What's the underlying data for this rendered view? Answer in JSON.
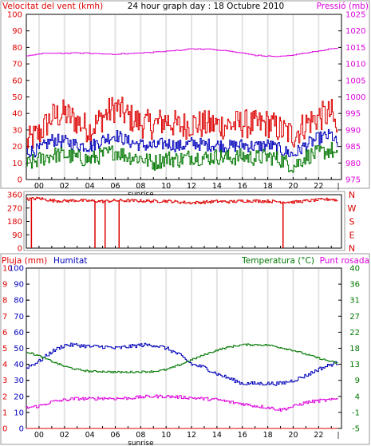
{
  "colors": {
    "background": "#ffffff",
    "plot_border": "#000000",
    "grid_vertical": "#e3e3e3",
    "red": "#dd0000",
    "blue": "#0000bb",
    "green": "#007700",
    "magenta": "#dd00dd",
    "frame": "#666666"
  },
  "chart_data": [
    {
      "type": "line",
      "header": {
        "left": "Velocitat del vent (kmh)",
        "center": "24 hour graph day : 18 Octubre 2010",
        "right": "Pressió (mb)"
      },
      "y_left": {
        "ylim": [
          0,
          100
        ],
        "ticks": [
          "100",
          "90",
          "80",
          "70",
          "60",
          "50",
          "40",
          "30",
          "20",
          "10",
          "0"
        ]
      },
      "y_right": {
        "ylim": [
          975,
          1025
        ],
        "ticks": [
          "1025",
          "1020",
          "1015",
          "1010",
          "1005",
          "1000",
          "995",
          "990",
          "985",
          "980",
          "975"
        ]
      },
      "x": {
        "xlim": [
          -1,
          23.8
        ],
        "tick_hours": [
          0,
          2,
          4,
          6,
          8,
          10,
          12,
          14,
          16,
          18,
          20,
          22
        ],
        "tick_labels": [
          "00",
          "02",
          "04",
          "06",
          "08",
          "10",
          "12",
          "14",
          "16",
          "18",
          "20",
          "22"
        ],
        "sunrise_hour": 8,
        "sunrise_label": "sunrise"
      },
      "series": [
        {
          "name": "",
          "axis": "left",
          "color": "red",
          "hours": [
            -1,
            0,
            1,
            2,
            3,
            4,
            5,
            6,
            7,
            8,
            9,
            10,
            11,
            12,
            13,
            14,
            15,
            16,
            17,
            18,
            19,
            20,
            21,
            22,
            23,
            23.5
          ],
          "values": [
            22,
            28,
            38,
            40,
            35,
            30,
            38,
            44,
            38,
            34,
            33,
            36,
            32,
            34,
            33,
            33,
            33,
            34,
            33,
            34,
            30,
            27,
            34,
            38,
            40,
            26
          ]
        },
        {
          "name": "",
          "axis": "left",
          "color": "blue",
          "hours": [
            -1,
            0,
            1,
            2,
            3,
            4,
            5,
            6,
            7,
            8,
            9,
            10,
            11,
            12,
            13,
            14,
            15,
            16,
            17,
            18,
            19,
            20,
            21,
            22,
            23,
            23.5
          ],
          "values": [
            17,
            18,
            24,
            23,
            21,
            20,
            24,
            27,
            23,
            21,
            20,
            22,
            20,
            22,
            21,
            21,
            20,
            21,
            20,
            21,
            18,
            15,
            21,
            25,
            27,
            20
          ]
        },
        {
          "name": "",
          "axis": "left",
          "color": "green",
          "hours": [
            -1,
            0,
            1,
            2,
            3,
            4,
            5,
            6,
            7,
            8,
            9,
            10,
            11,
            12,
            13,
            14,
            15,
            16,
            17,
            18,
            19,
            20,
            21,
            22,
            23,
            23.5
          ],
          "values": [
            9,
            12,
            15,
            15,
            13,
            12,
            15,
            17,
            14,
            13,
            10,
            13,
            12,
            14,
            13,
            14,
            13,
            14,
            13,
            14,
            12,
            8,
            14,
            16,
            18,
            12
          ]
        },
        {
          "name": "",
          "axis": "right",
          "color": "magenta",
          "hours": [
            -1,
            0,
            1,
            2,
            3,
            4,
            5,
            6,
            7,
            8,
            9,
            10,
            11,
            12,
            13,
            14,
            15,
            16,
            17,
            18,
            19,
            20,
            21,
            22,
            23,
            23.5
          ],
          "values": [
            1012.5,
            1013,
            1013.3,
            1013.2,
            1013.3,
            1013.2,
            1013,
            1013,
            1013.1,
            1013.3,
            1013.6,
            1013.8,
            1014.2,
            1014.6,
            1014.5,
            1014.2,
            1013.8,
            1013.2,
            1012.6,
            1012.3,
            1012.3,
            1012.7,
            1013.3,
            1014,
            1014.6,
            1015
          ]
        }
      ]
    },
    {
      "type": "line",
      "y_left": {
        "ylim": [
          0,
          360
        ],
        "ticks": [
          "360",
          "270",
          "180",
          "90",
          "0"
        ]
      },
      "y_right_labels": [
        "N",
        "W",
        "S",
        "E",
        "N"
      ],
      "x": {
        "xlim": [
          -1,
          23.8
        ]
      },
      "series": [
        {
          "name": "",
          "axis": "left",
          "color": "red",
          "hours": [
            -1,
            0,
            1,
            2,
            3,
            4,
            5,
            6,
            7,
            8,
            9,
            10,
            11,
            12,
            13,
            14,
            15,
            16,
            17,
            18,
            19,
            20,
            21,
            22,
            23,
            23.5
          ],
          "values": [
            330,
            335,
            320,
            318,
            322,
            318,
            315,
            320,
            320,
            318,
            316,
            318,
            310,
            305,
            310,
            315,
            312,
            318,
            318,
            316,
            312,
            310,
            318,
            325,
            330,
            320
          ]
        }
      ],
      "spikes": [
        {
          "hour": -0.6,
          "value": 0
        },
        {
          "hour": 4.4,
          "value": 0
        },
        {
          "hour": 5.2,
          "value": 0
        },
        {
          "hour": 6.3,
          "value": 0
        },
        {
          "hour": 19.2,
          "value": 0
        }
      ]
    },
    {
      "type": "line",
      "header": {
        "left1": "Pluja (mm)",
        "left2": "Humitat",
        "right1": "Temperatura (°C)",
        "right2": "Punt rosada"
      },
      "y_far_left": {
        "ylim": [
          0,
          10
        ],
        "ticks": [
          "10",
          "9",
          "8",
          "7",
          "6",
          "5",
          "4",
          "3",
          "2",
          "1",
          "0"
        ]
      },
      "y_left": {
        "ylim": [
          0,
          100
        ],
        "ticks": [
          "100",
          "90",
          "80",
          "70",
          "60",
          "50",
          "40",
          "30",
          "20",
          "10",
          "0"
        ]
      },
      "y_right": {
        "ylim": [
          -5,
          40
        ],
        "ticks": [
          "40",
          "36",
          "31",
          "27",
          "22",
          "18",
          "13",
          "9",
          "4",
          "-1",
          "-5"
        ]
      },
      "x": {
        "xlim": [
          -1,
          23.8
        ],
        "tick_hours": [
          0,
          2,
          4,
          6,
          8,
          10,
          12,
          14,
          16,
          18,
          20,
          22
        ],
        "tick_labels": [
          "00",
          "02",
          "04",
          "06",
          "08",
          "10",
          "12",
          "14",
          "16",
          "18",
          "20",
          "22"
        ],
        "sunrise_hour": 8,
        "sunrise_label": "sunrise"
      },
      "series": [
        {
          "name": "Humitat",
          "axis": "left",
          "color": "blue",
          "hours": [
            -1,
            0,
            1,
            2,
            3,
            4,
            5,
            6,
            7,
            8,
            9,
            10,
            11,
            12,
            13,
            14,
            15,
            16,
            17,
            18,
            19,
            20,
            21,
            22,
            23,
            23.5
          ],
          "values": [
            38,
            42,
            48,
            52,
            52,
            51,
            51,
            50,
            51,
            52,
            52,
            50,
            46,
            40,
            38,
            34,
            31,
            28,
            28,
            28,
            28,
            30,
            33,
            37,
            40,
            41
          ]
        },
        {
          "name": "Temperatura",
          "axis": "right",
          "color": "green",
          "hours": [
            -1,
            0,
            1,
            2,
            3,
            4,
            5,
            6,
            7,
            8,
            9,
            10,
            11,
            12,
            13,
            14,
            15,
            16,
            17,
            18,
            19,
            20,
            21,
            22,
            23,
            23.5
          ],
          "values": [
            16.5,
            15.3,
            13.8,
            12.4,
            11.5,
            11,
            11,
            10.8,
            10.8,
            10.9,
            11,
            11.5,
            12.8,
            14.3,
            15.7,
            17,
            17.9,
            18.5,
            18.5,
            18.4,
            17.7,
            16.9,
            15.8,
            14.7,
            13.7,
            13.3
          ]
        },
        {
          "name": "Punt rosada",
          "axis": "right",
          "color": "magenta",
          "hours": [
            -1,
            0,
            1,
            2,
            3,
            4,
            5,
            6,
            7,
            8,
            9,
            10,
            11,
            12,
            13,
            14,
            15,
            16,
            17,
            18,
            19,
            20,
            21,
            22,
            23,
            23.5
          ],
          "values": [
            0.8,
            1.3,
            2.5,
            3.0,
            3.4,
            3.3,
            3.5,
            3.4,
            3.5,
            3.8,
            4.0,
            4.0,
            3.8,
            3.6,
            3.3,
            3.1,
            2.4,
            1.9,
            1.3,
            0.9,
            0.2,
            1.2,
            2.3,
            2.8,
            3.0,
            3.4
          ]
        },
        {
          "name": "Pluja",
          "axis": "far_left",
          "color": "red",
          "hours": [
            -1,
            23.5
          ],
          "values": [
            0,
            0
          ]
        }
      ]
    }
  ]
}
